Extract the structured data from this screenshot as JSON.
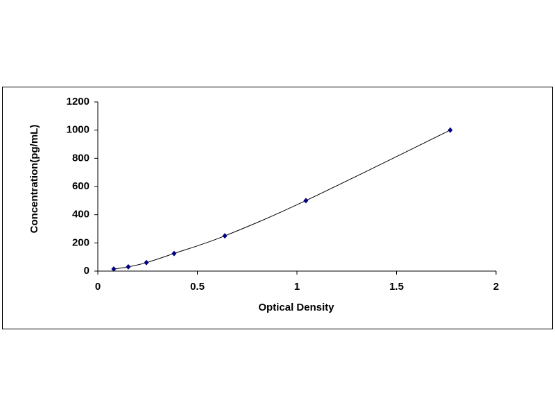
{
  "chart_data": {
    "type": "line",
    "x_label": "Optical Density",
    "y_label": "Concentration(pg/mL)",
    "x": [
      0.08,
      0.153,
      0.244,
      0.383,
      0.638,
      1.045,
      1.77
    ],
    "series": [
      {
        "color": "#000080",
        "values": [
          15,
          30,
          60,
          125,
          250,
          500,
          1000
        ]
      }
    ],
    "xlim": [
      0,
      2
    ],
    "xticks": [
      0,
      0.5,
      1,
      1.5,
      2
    ],
    "ylim": [
      0,
      1200
    ],
    "yticks": [
      0,
      200,
      400,
      600,
      800,
      1000,
      1200
    ],
    "grid": false
  }
}
